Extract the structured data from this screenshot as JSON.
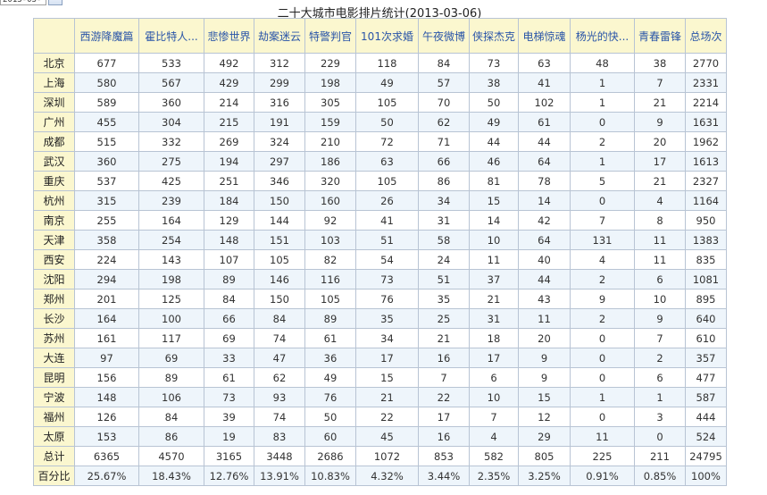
{
  "control": {
    "date_value": "2013-03-06"
  },
  "title": "二十大城市电影排片统计(2013-03-06)",
  "columns": [
    "西游降魔篇",
    "霍比特人...",
    "悲惨世界",
    "劫案迷云",
    "特警判官",
    "101次求婚",
    "午夜微博",
    "侠探杰克",
    "电梯惊魂",
    "杨光的快...",
    "青春雷锋",
    "总场次"
  ],
  "rows": [
    {
      "city": "北京",
      "values": [
        "677",
        "533",
        "492",
        "312",
        "229",
        "118",
        "84",
        "73",
        "63",
        "48",
        "38",
        "2770"
      ]
    },
    {
      "city": "上海",
      "values": [
        "580",
        "567",
        "429",
        "299",
        "198",
        "49",
        "57",
        "38",
        "41",
        "1",
        "7",
        "2331"
      ]
    },
    {
      "city": "深圳",
      "values": [
        "589",
        "360",
        "214",
        "316",
        "305",
        "105",
        "70",
        "50",
        "102",
        "1",
        "21",
        "2214"
      ]
    },
    {
      "city": "广州",
      "values": [
        "455",
        "304",
        "215",
        "191",
        "159",
        "50",
        "62",
        "49",
        "61",
        "0",
        "9",
        "1631"
      ]
    },
    {
      "city": "成都",
      "values": [
        "515",
        "332",
        "269",
        "324",
        "210",
        "72",
        "71",
        "44",
        "44",
        "2",
        "20",
        "1962"
      ]
    },
    {
      "city": "武汉",
      "values": [
        "360",
        "275",
        "194",
        "297",
        "186",
        "63",
        "66",
        "46",
        "64",
        "1",
        "17",
        "1613"
      ]
    },
    {
      "city": "重庆",
      "values": [
        "537",
        "425",
        "251",
        "346",
        "320",
        "105",
        "86",
        "81",
        "78",
        "5",
        "21",
        "2327"
      ]
    },
    {
      "city": "杭州",
      "values": [
        "315",
        "239",
        "184",
        "150",
        "160",
        "26",
        "34",
        "15",
        "14",
        "0",
        "4",
        "1164"
      ]
    },
    {
      "city": "南京",
      "values": [
        "255",
        "164",
        "129",
        "144",
        "92",
        "41",
        "31",
        "14",
        "42",
        "7",
        "8",
        "950"
      ]
    },
    {
      "city": "天津",
      "values": [
        "358",
        "254",
        "148",
        "151",
        "103",
        "51",
        "58",
        "10",
        "64",
        "131",
        "11",
        "1383"
      ]
    },
    {
      "city": "西安",
      "values": [
        "224",
        "143",
        "107",
        "105",
        "82",
        "54",
        "24",
        "11",
        "40",
        "4",
        "11",
        "835"
      ]
    },
    {
      "city": "沈阳",
      "values": [
        "294",
        "198",
        "89",
        "146",
        "116",
        "73",
        "51",
        "37",
        "44",
        "2",
        "6",
        "1081"
      ]
    },
    {
      "city": "郑州",
      "values": [
        "201",
        "125",
        "84",
        "150",
        "105",
        "76",
        "35",
        "21",
        "43",
        "9",
        "10",
        "895"
      ]
    },
    {
      "city": "长沙",
      "values": [
        "164",
        "100",
        "66",
        "84",
        "89",
        "35",
        "25",
        "31",
        "11",
        "2",
        "9",
        "640"
      ]
    },
    {
      "city": "苏州",
      "values": [
        "161",
        "117",
        "69",
        "74",
        "61",
        "34",
        "21",
        "18",
        "20",
        "0",
        "7",
        "610"
      ]
    },
    {
      "city": "大连",
      "values": [
        "97",
        "69",
        "33",
        "47",
        "36",
        "17",
        "16",
        "17",
        "9",
        "0",
        "2",
        "357"
      ]
    },
    {
      "city": "昆明",
      "values": [
        "156",
        "89",
        "61",
        "62",
        "49",
        "15",
        "7",
        "6",
        "9",
        "0",
        "6",
        "477"
      ]
    },
    {
      "city": "宁波",
      "values": [
        "148",
        "106",
        "73",
        "93",
        "76",
        "21",
        "22",
        "10",
        "15",
        "1",
        "1",
        "587"
      ]
    },
    {
      "city": "福州",
      "values": [
        "126",
        "84",
        "39",
        "74",
        "50",
        "22",
        "17",
        "7",
        "12",
        "0",
        "3",
        "444"
      ]
    },
    {
      "city": "太原",
      "values": [
        "153",
        "86",
        "19",
        "83",
        "60",
        "45",
        "16",
        "4",
        "29",
        "11",
        "0",
        "524"
      ]
    },
    {
      "city": "总计",
      "values": [
        "6365",
        "4570",
        "3165",
        "3448",
        "2686",
        "1072",
        "853",
        "582",
        "805",
        "225",
        "211",
        "24795"
      ]
    },
    {
      "city": "百分比",
      "values": [
        "25.67%",
        "18.43%",
        "12.76%",
        "13.91%",
        "10.83%",
        "4.32%",
        "3.44%",
        "2.35%",
        "3.25%",
        "0.91%",
        "0.85%",
        "100%"
      ]
    }
  ]
}
